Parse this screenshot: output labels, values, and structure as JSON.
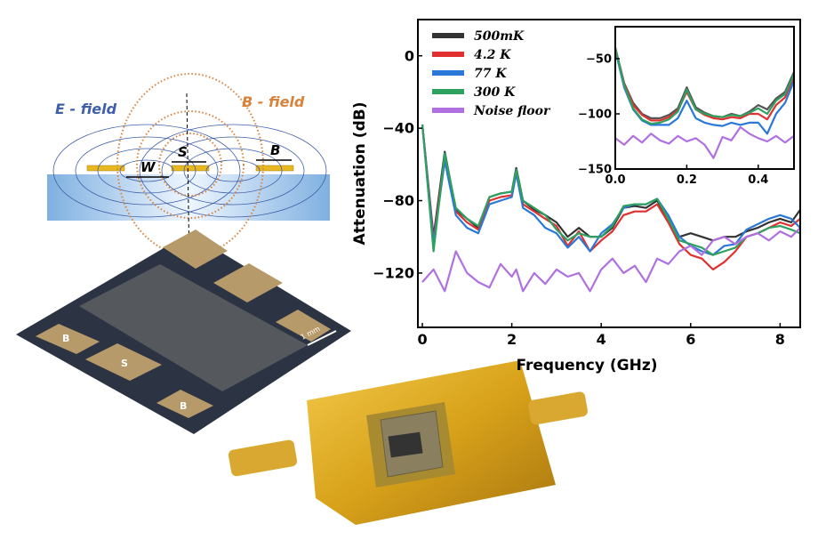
{
  "diagram": {
    "e_field_label": "E - field",
    "b_field_label": "B - field",
    "s_label": "S",
    "w_label": "W",
    "b_label": "B",
    "colors": {
      "e_field": "#3f5fa8",
      "b_field": "#d9823b",
      "conductor": "#e8b820",
      "substrate": "#8fb8e0"
    }
  },
  "chip_photo": {
    "pad_labels": [
      "B",
      "S",
      "B"
    ],
    "scale_bar": "1 mm"
  },
  "board_photo": {},
  "chart_data": [
    {
      "type": "line",
      "title": "",
      "xlabel": "Frequency (GHz)",
      "ylabel": "Attenuation (dB)",
      "xlim": [
        -0.1,
        8.45
      ],
      "ylim": [
        -150,
        20
      ],
      "xticks": [
        0,
        2,
        4,
        6,
        8
      ],
      "yticks": [
        0,
        -40,
        -80,
        -120
      ],
      "grid": false,
      "legend_position": "top-left",
      "x": [
        0,
        0.25,
        0.5,
        0.75,
        1,
        1.25,
        1.5,
        1.75,
        2,
        2.1,
        2.25,
        2.5,
        2.75,
        3,
        3.25,
        3.5,
        3.75,
        4,
        4.25,
        4.5,
        4.75,
        5,
        5.25,
        5.5,
        5.75,
        6,
        6.25,
        6.5,
        6.75,
        7,
        7.25,
        7.5,
        7.75,
        8,
        8.25,
        8.45
      ],
      "series": [
        {
          "name": "500mK",
          "color": "#333333",
          "values": [
            -38,
            -100,
            -53,
            -85,
            -90,
            -95,
            -78,
            -76,
            -75,
            -62,
            -80,
            -85,
            -88,
            -92,
            -100,
            -95,
            -100,
            -100,
            -95,
            -84,
            -83,
            -84,
            -80,
            -90,
            -100,
            -98,
            -100,
            -102,
            -100,
            -100,
            -97,
            -95,
            -92,
            -90,
            -92,
            -85
          ]
        },
        {
          "name": "4.2 K",
          "color": "#e03030",
          "values": [
            -38,
            -102,
            -56,
            -86,
            -92,
            -96,
            -80,
            -78,
            -77,
            -64,
            -82,
            -86,
            -90,
            -94,
            -105,
            -97,
            -108,
            -102,
            -97,
            -88,
            -86,
            -86,
            -82,
            -92,
            -104,
            -110,
            -112,
            -118,
            -114,
            -108,
            -100,
            -98,
            -95,
            -92,
            -94,
            -90
          ]
        },
        {
          "name": "77 K",
          "color": "#2a78d8",
          "values": [
            -38,
            -104,
            -58,
            -88,
            -95,
            -98,
            -82,
            -80,
            -78,
            -65,
            -84,
            -88,
            -95,
            -98,
            -106,
            -100,
            -108,
            -98,
            -93,
            -84,
            -82,
            -82,
            -79,
            -88,
            -100,
            -105,
            -108,
            -110,
            -105,
            -104,
            -96,
            -93,
            -90,
            -88,
            -90,
            -95
          ]
        },
        {
          "name": "300 K",
          "color": "#2ea060",
          "values": [
            -38,
            -108,
            -54,
            -84,
            -90,
            -94,
            -78,
            -76,
            -75,
            -63,
            -80,
            -84,
            -88,
            -96,
            -102,
            -98,
            -100,
            -100,
            -94,
            -83,
            -82,
            -82,
            -79,
            -90,
            -102,
            -104,
            -106,
            -110,
            -108,
            -106,
            -100,
            -98,
            -95,
            -94,
            -96,
            -98
          ]
        },
        {
          "name": "Noise floor",
          "color": "#b070e0",
          "values": [
            -125,
            -118,
            -130,
            -108,
            -120,
            -125,
            -128,
            -115,
            -122,
            -118,
            -130,
            -120,
            -126,
            -118,
            -122,
            -120,
            -130,
            -118,
            -112,
            -120,
            -116,
            -125,
            -112,
            -115,
            -108,
            -105,
            -110,
            -102,
            -100,
            -104,
            -100,
            -98,
            -102,
            -97,
            -100,
            -95
          ]
        }
      ]
    },
    {
      "type": "line",
      "title": "",
      "xlabel": "",
      "ylabel": "",
      "xlim": [
        0,
        0.5
      ],
      "ylim": [
        -150,
        -21
      ],
      "xticks": [
        0.0,
        0.2,
        0.4
      ],
      "yticks": [
        -50,
        -100,
        -150
      ],
      "grid": false,
      "x": [
        0,
        0.025,
        0.05,
        0.075,
        0.1,
        0.125,
        0.15,
        0.175,
        0.2,
        0.225,
        0.25,
        0.275,
        0.3,
        0.325,
        0.35,
        0.375,
        0.4,
        0.425,
        0.45,
        0.475,
        0.5
      ],
      "series": [
        {
          "color": "#555555",
          "values": [
            -40,
            -72,
            -90,
            -100,
            -104,
            -104,
            -101,
            -95,
            -76,
            -94,
            -99,
            -102,
            -103,
            -100,
            -102,
            -98,
            -92,
            -96,
            -86,
            -80,
            -62
          ]
        },
        {
          "color": "#e03030",
          "values": [
            -40,
            -73,
            -92,
            -101,
            -106,
            -106,
            -103,
            -97,
            -80,
            -96,
            -101,
            -104,
            -105,
            -103,
            -104,
            -100,
            -100,
            -105,
            -92,
            -85,
            -66
          ]
        },
        {
          "color": "#2a78d8",
          "values": [
            -42,
            -76,
            -96,
            -106,
            -110,
            -110,
            -110,
            -104,
            -88,
            -104,
            -108,
            -110,
            -111,
            -108,
            -110,
            -108,
            -108,
            -118,
            -100,
            -90,
            -70
          ]
        },
        {
          "color": "#2ea060",
          "values": [
            -40,
            -74,
            -95,
            -105,
            -109,
            -108,
            -105,
            -98,
            -78,
            -96,
            -100,
            -102,
            -103,
            -101,
            -102,
            -99,
            -95,
            -100,
            -88,
            -82,
            -64
          ]
        },
        {
          "color": "#b070e0",
          "values": [
            -122,
            -128,
            -120,
            -126,
            -118,
            -124,
            -127,
            -120,
            -125,
            -122,
            -128,
            -140,
            -121,
            -124,
            -112,
            -118,
            -122,
            -125,
            -120,
            -126,
            -120
          ]
        }
      ]
    }
  ]
}
